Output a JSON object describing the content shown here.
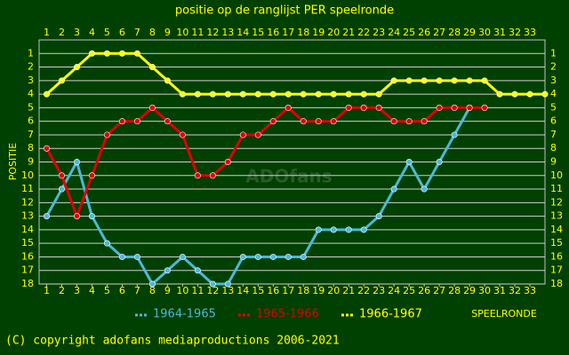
{
  "chart_data": {
    "type": "line",
    "title": "positie op de ranglijst PER speelronde",
    "y_label": "POSITIE",
    "x_label": "SPEELRONDE",
    "watermark": "ADOfans",
    "footer": "(C) copyright adofans mediaproductions 2006-2021",
    "x": [
      1,
      2,
      3,
      4,
      5,
      6,
      7,
      8,
      9,
      10,
      11,
      12,
      13,
      14,
      15,
      16,
      17,
      18,
      19,
      20,
      21,
      22,
      23,
      24,
      25,
      26,
      27,
      28,
      29,
      30,
      31,
      32,
      33,
      34
    ],
    "xlim": [
      0.5,
      34
    ],
    "xticks": [
      1,
      2,
      3,
      4,
      5,
      6,
      7,
      8,
      9,
      10,
      11,
      12,
      13,
      14,
      15,
      16,
      17,
      18,
      19,
      20,
      21,
      22,
      23,
      24,
      25,
      26,
      27,
      28,
      29,
      30,
      31,
      32,
      33
    ],
    "ylim": [
      0,
      18
    ],
    "yticks": [
      1,
      2,
      3,
      4,
      5,
      6,
      7,
      8,
      9,
      10,
      11,
      12,
      13,
      14,
      15,
      16,
      17,
      18
    ],
    "y_inverted": true,
    "grid": true,
    "series": [
      {
        "name": "1964-1965",
        "color": "#4cb8d8",
        "values": [
          13,
          11,
          9,
          13,
          15,
          16,
          16,
          18,
          17,
          16,
          17,
          18,
          18,
          16,
          16,
          16,
          16,
          16,
          14,
          14,
          14,
          14,
          13,
          11,
          9,
          11,
          9,
          7,
          5,
          null,
          null,
          null,
          null,
          null
        ]
      },
      {
        "name": "1965-1966",
        "color": "#e00000",
        "values": [
          8,
          10,
          13,
          10,
          7,
          6,
          6,
          5,
          6,
          7,
          10,
          10,
          9,
          7,
          7,
          6,
          5,
          6,
          6,
          6,
          5,
          5,
          5,
          6,
          6,
          6,
          5,
          5,
          5,
          5,
          null,
          null,
          null,
          null
        ]
      },
      {
        "name": "1966-1967",
        "color": "#ffff00",
        "values": [
          4,
          3,
          2,
          1,
          1,
          1,
          1,
          2,
          3,
          4,
          4,
          4,
          4,
          4,
          4,
          4,
          4,
          4,
          4,
          4,
          4,
          4,
          4,
          3,
          3,
          3,
          3,
          3,
          3,
          3,
          4,
          4,
          4,
          4
        ]
      }
    ]
  }
}
